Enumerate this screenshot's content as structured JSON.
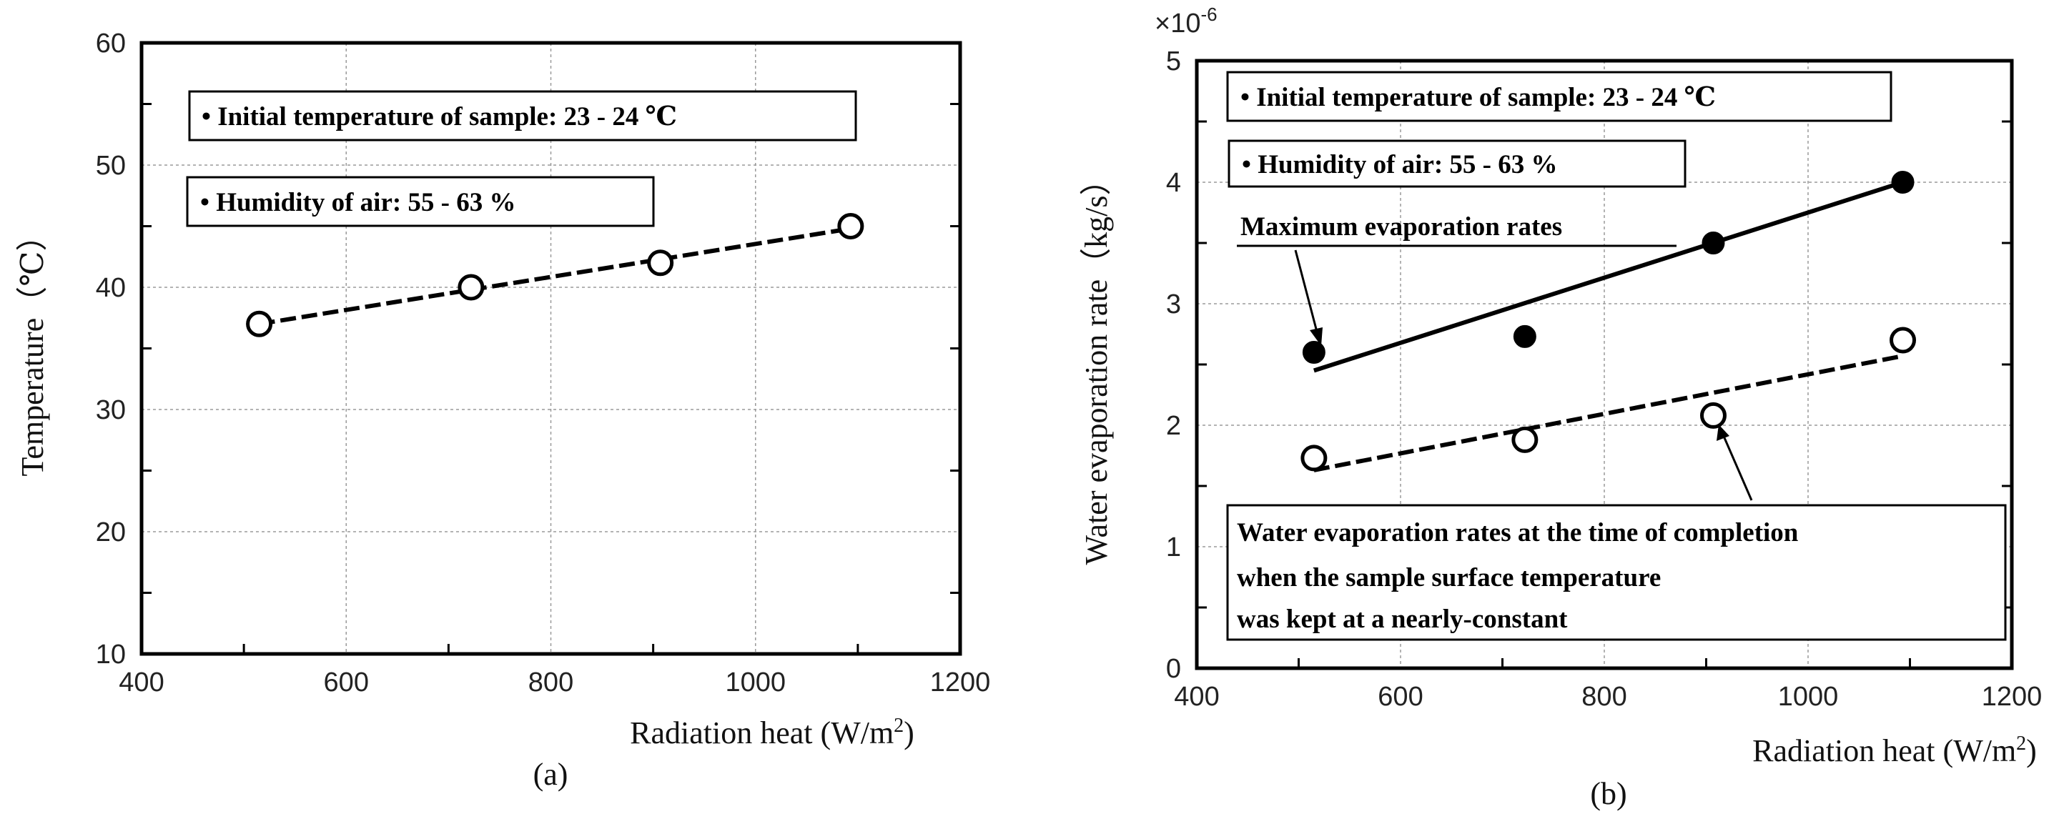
{
  "chart_data": [
    {
      "type": "scatter",
      "caption": "(a)",
      "xlabel": "Radiation heat (W/m",
      "xlabel_sup": "2",
      "xlabel_end": ")",
      "ylabel": "Temperature（℃）",
      "xlim": [
        400,
        1200
      ],
      "ylim": [
        10,
        60
      ],
      "xticks": [
        400,
        600,
        800,
        1000,
        1200
      ],
      "yticks": [
        10,
        20,
        30,
        40,
        50,
        60
      ],
      "grid": true,
      "series": [
        {
          "marker": "open-circle",
          "x": [
            515,
            722,
            907,
            1093
          ],
          "y": [
            37,
            40,
            42,
            45
          ],
          "trendline": {
            "style": "dashed",
            "x": [
              515,
              1093
            ],
            "y": [
              37,
              44.8
            ]
          }
        }
      ],
      "annotations": [
        "• Initial temperature of sample: 23 - 24 ℃",
        "• Humidity of air: 55 - 63 %"
      ]
    },
    {
      "type": "scatter",
      "caption": "(b)",
      "multiplier": "×10",
      "multiplier_exp": "-6",
      "xlabel": "Radiation heat (W/m",
      "xlabel_sup": "2",
      "xlabel_end": ")",
      "ylabel": "Water evaporation rate（kg/s）",
      "xlim": [
        400,
        1200
      ],
      "ylim": [
        0,
        5
      ],
      "xticks": [
        400,
        600,
        800,
        1000,
        1200
      ],
      "yticks": [
        0,
        1,
        2,
        3,
        4,
        5
      ],
      "grid": true,
      "series": [
        {
          "marker": "filled-circle",
          "x": [
            515,
            722,
            907,
            1093
          ],
          "y": [
            2.6,
            2.73,
            3.5,
            4.0
          ],
          "trendline": {
            "style": "solid",
            "x": [
              515,
              1093
            ],
            "y": [
              2.45,
              4.0
            ]
          }
        },
        {
          "marker": "open-circle",
          "x": [
            515,
            722,
            907,
            1093
          ],
          "y": [
            1.73,
            1.88,
            2.08,
            2.7
          ],
          "trendline": {
            "style": "dashed",
            "x": [
              515,
              1093
            ],
            "y": [
              1.63,
              2.57
            ]
          }
        }
      ],
      "annotations": [
        "• Initial temperature of sample: 23 - 24 ℃",
        "• Humidity of air: 55 - 63 %",
        "Maximum evaporation rates",
        "Water evaporation rates at the time of completion",
        "when the sample surface temperature",
        "was kept at a nearly-constant"
      ]
    }
  ]
}
